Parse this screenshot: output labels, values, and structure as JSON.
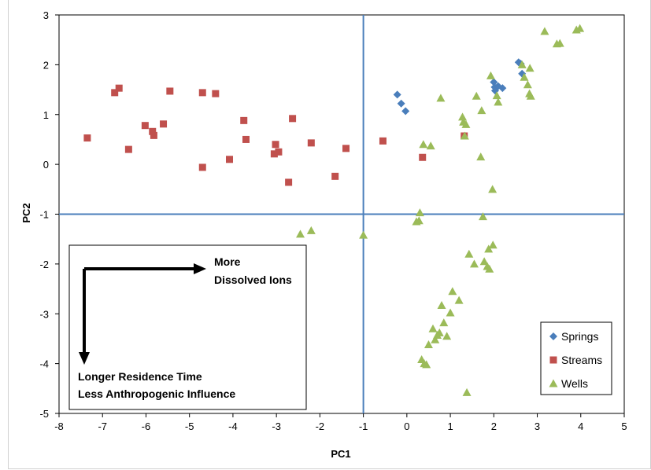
{
  "chart_data": {
    "type": "scatter",
    "xlabel": "PC1",
    "ylabel": "PC2",
    "xlim": [
      -8,
      5
    ],
    "ylim": [
      -5,
      3
    ],
    "xticks": [
      "-8",
      "-7",
      "-6",
      "-5",
      "-4",
      "-3",
      "-2",
      "-1",
      "0",
      "1",
      "2",
      "3",
      "4",
      "5"
    ],
    "yticks": [
      "3",
      "2",
      "1",
      "0",
      "-1",
      "-2",
      "-3",
      "-4",
      "-5"
    ],
    "reference_lines": {
      "x": -1,
      "y": -1,
      "color": "#4a7ebb"
    },
    "grid": false,
    "legend_position": "bottom-right",
    "series": [
      {
        "name": "Springs",
        "marker": "diamond",
        "color": "#4a7ebb",
        "points": [
          [
            -0.22,
            1.4
          ],
          [
            -0.13,
            1.22
          ],
          [
            -0.03,
            1.07
          ],
          [
            2.0,
            1.65
          ],
          [
            2.02,
            1.55
          ],
          [
            2.03,
            1.48
          ],
          [
            2.1,
            1.57
          ],
          [
            2.2,
            1.53
          ],
          [
            2.57,
            2.05
          ],
          [
            2.62,
            2.02
          ],
          [
            2.65,
            1.82
          ]
        ]
      },
      {
        "name": "Streams",
        "marker": "square",
        "color": "#c0504d",
        "points": [
          [
            -7.35,
            0.53
          ],
          [
            -6.72,
            1.44
          ],
          [
            -6.62,
            1.53
          ],
          [
            -6.4,
            0.3
          ],
          [
            -6.02,
            0.78
          ],
          [
            -5.85,
            0.66
          ],
          [
            -5.82,
            0.58
          ],
          [
            -5.6,
            0.81
          ],
          [
            -5.45,
            1.47
          ],
          [
            -4.7,
            1.44
          ],
          [
            -4.7,
            -0.06
          ],
          [
            -4.4,
            1.42
          ],
          [
            -4.08,
            0.1
          ],
          [
            -3.75,
            0.88
          ],
          [
            -3.7,
            0.5
          ],
          [
            -3.05,
            0.21
          ],
          [
            -3.02,
            0.4
          ],
          [
            -2.95,
            0.25
          ],
          [
            -2.72,
            -0.36
          ],
          [
            -2.63,
            0.92
          ],
          [
            -2.2,
            0.43
          ],
          [
            -1.65,
            -0.24
          ],
          [
            -1.4,
            0.32
          ],
          [
            -0.55,
            0.47
          ],
          [
            0.36,
            0.14
          ],
          [
            1.32,
            0.57
          ]
        ]
      },
      {
        "name": "Wells",
        "marker": "triangle",
        "color": "#9bbb59",
        "points": [
          [
            -2.45,
            -1.4
          ],
          [
            -2.2,
            -1.33
          ],
          [
            -1.0,
            -1.42
          ],
          [
            0.22,
            -1.15
          ],
          [
            0.28,
            -1.13
          ],
          [
            0.3,
            -0.97
          ],
          [
            0.34,
            -3.92
          ],
          [
            0.38,
            0.4
          ],
          [
            0.4,
            -4.0
          ],
          [
            0.45,
            -4.02
          ],
          [
            0.5,
            -3.62
          ],
          [
            0.55,
            0.37
          ],
          [
            0.6,
            -3.3
          ],
          [
            0.65,
            -3.52
          ],
          [
            0.7,
            -3.43
          ],
          [
            0.75,
            -3.38
          ],
          [
            0.78,
            1.33
          ],
          [
            0.8,
            -2.83
          ],
          [
            0.85,
            -3.18
          ],
          [
            0.92,
            -3.45
          ],
          [
            1.0,
            -2.98
          ],
          [
            1.05,
            -2.55
          ],
          [
            1.2,
            -2.73
          ],
          [
            1.28,
            0.95
          ],
          [
            1.3,
            0.85
          ],
          [
            1.33,
            0.57
          ],
          [
            1.36,
            0.8
          ],
          [
            1.38,
            -4.58
          ],
          [
            1.43,
            -1.8
          ],
          [
            1.55,
            -2.0
          ],
          [
            1.6,
            1.37
          ],
          [
            1.7,
            0.15
          ],
          [
            1.72,
            1.08
          ],
          [
            1.75,
            -1.05
          ],
          [
            1.78,
            -1.95
          ],
          [
            1.85,
            -2.05
          ],
          [
            1.88,
            -1.7
          ],
          [
            1.9,
            -2.1
          ],
          [
            1.93,
            1.78
          ],
          [
            1.97,
            -0.5
          ],
          [
            1.98,
            -1.62
          ],
          [
            2.07,
            1.38
          ],
          [
            2.1,
            1.25
          ],
          [
            2.65,
            2.0
          ],
          [
            2.7,
            1.75
          ],
          [
            2.78,
            1.6
          ],
          [
            2.82,
            1.42
          ],
          [
            2.83,
            1.93
          ],
          [
            2.85,
            1.37
          ],
          [
            3.17,
            2.67
          ],
          [
            3.45,
            2.42
          ],
          [
            3.52,
            2.43
          ],
          [
            3.9,
            2.7
          ],
          [
            3.98,
            2.73
          ]
        ]
      }
    ],
    "annotations": {
      "arrow_right_label": [
        "More",
        "Dissolved Ions"
      ],
      "arrow_down_label": [
        "Longer Residence Time",
        "Less Anthropogenic Influence"
      ]
    }
  }
}
